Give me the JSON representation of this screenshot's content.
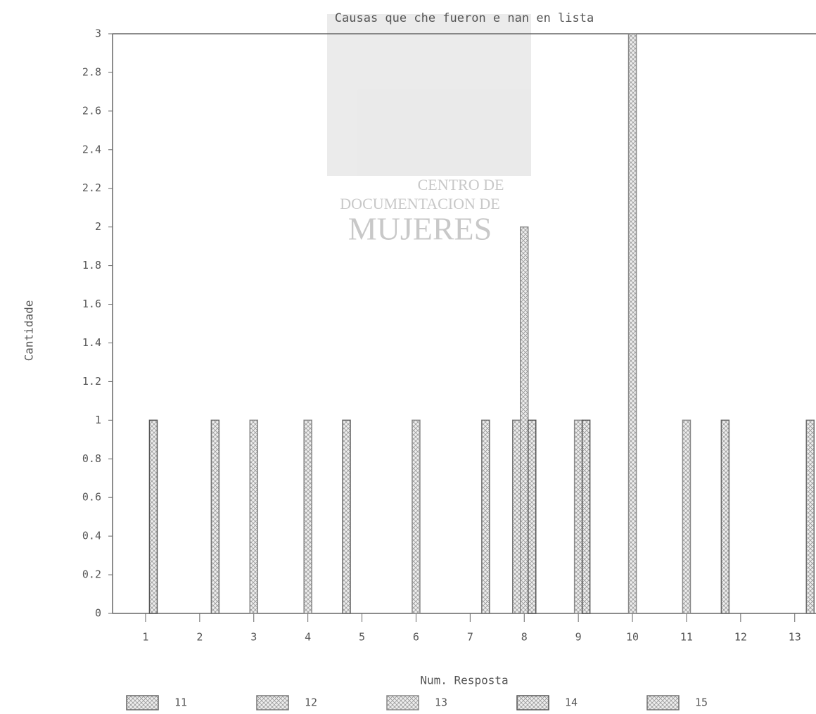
{
  "chart_data": {
    "type": "bar",
    "title": "Causas que che fueron e nan en lista",
    "x_label": "Num. Resposta",
    "y_label": "Cantidade",
    "watermark": [
      "CENTRO DE",
      "DOCUMENTACION DE",
      "MUJERES"
    ],
    "categories": [
      "1",
      "2",
      "3",
      "4",
      "5",
      "6",
      "7",
      "8",
      "9",
      "10",
      "11",
      "12",
      "13"
    ],
    "series": [
      {
        "name": "11",
        "color": "#666666",
        "values": [
          0,
          0,
          0,
          0,
          1,
          0,
          0,
          0,
          0,
          0,
          0,
          1,
          0
        ]
      },
      {
        "name": "12",
        "color": "#777777",
        "values": [
          0,
          0,
          0,
          0,
          0,
          0,
          0,
          1,
          0,
          0,
          0,
          0,
          0
        ]
      },
      {
        "name": "13",
        "color": "#888888",
        "values": [
          0,
          0,
          1,
          1,
          0,
          1,
          0,
          2,
          1,
          3,
          1,
          0,
          0
        ]
      },
      {
        "name": "14",
        "color": "#555555",
        "values": [
          1,
          0,
          0,
          0,
          0,
          0,
          0,
          1,
          1,
          0,
          0,
          0,
          0
        ]
      },
      {
        "name": "15",
        "color": "#707070",
        "values": [
          0,
          1,
          0,
          0,
          0,
          0,
          1,
          0,
          0,
          0,
          0,
          0,
          1
        ]
      }
    ],
    "ylim": [
      0,
      3
    ],
    "yticks": [
      0,
      0.2,
      0.4,
      0.6,
      0.8,
      1,
      1.2,
      1.4,
      1.6,
      1.8,
      2,
      2.2,
      2.4,
      2.6,
      2.8,
      3
    ],
    "grid": false
  }
}
